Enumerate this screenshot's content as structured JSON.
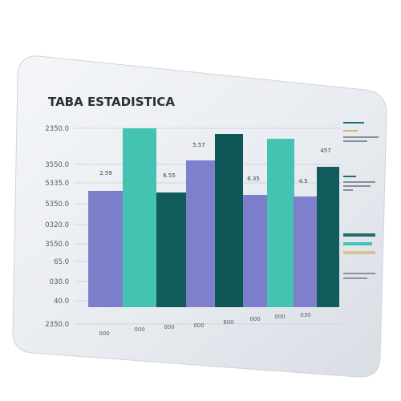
{
  "panel": {
    "title": "TABA ESTADISTICA",
    "y_labels": [
      "2350.0",
      "3550.0",
      "5335.0",
      "5350.0",
      "0320.0",
      "3550.0",
      "65.0",
      "030.0",
      "40.0",
      "2350.0"
    ],
    "value_labels": [
      "2.59",
      "6.55",
      "5.57",
      "6.35",
      "4.5",
      "457"
    ],
    "x_labels": [
      "000",
      "000",
      "000",
      "000",
      "600",
      "000",
      "000",
      "030"
    ]
  }
}
